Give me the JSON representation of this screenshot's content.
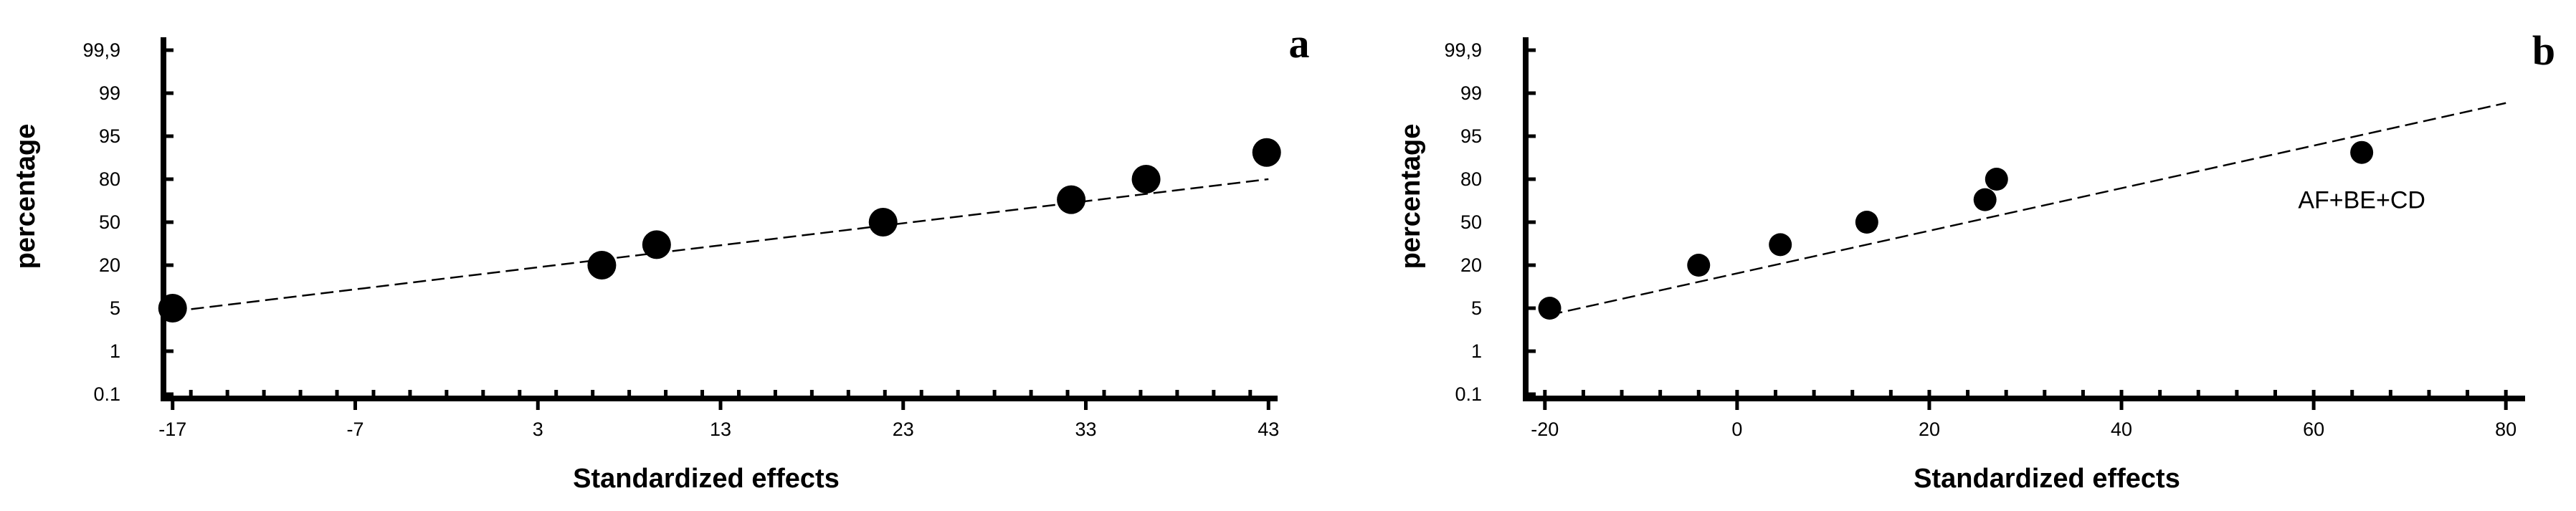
{
  "chart_data": [
    {
      "type": "scatter",
      "panel_label": "a",
      "xlabel": "Standardized effects",
      "ylabel": "percentage",
      "xlim": [
        -17.5,
        43.5
      ],
      "x_ticks": [
        -17,
        -7,
        3,
        13,
        23,
        33,
        43
      ],
      "x_minor_step": 2,
      "y_ticks": [
        "0.1",
        "1",
        "5",
        "20",
        "50",
        "80",
        "95",
        "99",
        "99,9"
      ],
      "y_scale": "normal probability",
      "points": [
        {
          "x": -17.0,
          "y": 5
        },
        {
          "x": 6.5,
          "y": 20
        },
        {
          "x": 9.5,
          "y": 33
        },
        {
          "x": 21.9,
          "y": 50
        },
        {
          "x": 32.2,
          "y": 67
        },
        {
          "x": 36.3,
          "y": 80
        },
        {
          "x": 42.9,
          "y": 91
        }
      ],
      "fit_line": [
        [
          -17.0,
          4.5
        ],
        [
          43.0,
          80
        ]
      ],
      "point_radius": "large",
      "annotations": []
    },
    {
      "type": "scatter",
      "panel_label": "b",
      "xlabel": "Standardized effects",
      "ylabel": "percentage",
      "xlim": [
        -22,
        82
      ],
      "x_ticks": [
        -20,
        0,
        20,
        40,
        60,
        80
      ],
      "x_minor_step": 4,
      "y_ticks": [
        "0.1",
        "1",
        "5",
        "20",
        "50",
        "80",
        "95",
        "99",
        "99,9"
      ],
      "y_scale": "normal probability",
      "points": [
        {
          "x": -19.5,
          "y": 5
        },
        {
          "x": -4.0,
          "y": 20
        },
        {
          "x": 4.5,
          "y": 33
        },
        {
          "x": 13.5,
          "y": 50
        },
        {
          "x": 25.8,
          "y": 67
        },
        {
          "x": 27.0,
          "y": 80
        },
        {
          "x": 65.0,
          "y": 91
        }
      ],
      "fit_line": [
        [
          -19.5,
          4.0
        ],
        [
          80.0,
          98.5
        ]
      ],
      "point_radius": "medium",
      "annotations": [
        {
          "text": "AF+BE+CD",
          "x": 65.0,
          "y": 91
        }
      ]
    }
  ]
}
